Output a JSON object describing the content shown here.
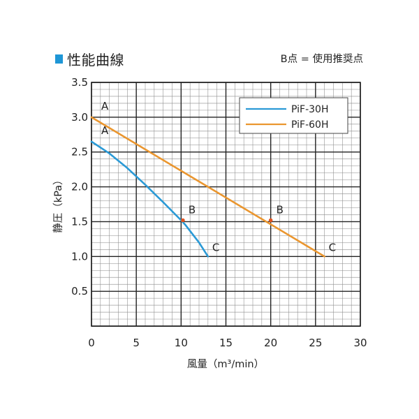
{
  "header": {
    "title": "性能曲線",
    "note": "B点 = 使用推奨点"
  },
  "colors": {
    "accent": "#1e96d6",
    "series_30h": "#2b9ad6",
    "series_60h": "#ea962f"
  },
  "chart_data": {
    "type": "line",
    "xlabel": "風量（m³/min）",
    "ylabel": "静圧（kPa）",
    "xlim": [
      0,
      30
    ],
    "ylim": [
      0,
      3.5
    ],
    "xticks": [
      "0",
      "5",
      "10",
      "15",
      "20",
      "25",
      "30"
    ],
    "yticks": [
      "0.5",
      "1.0",
      "1.5",
      "2.0",
      "2.5",
      "3.0",
      "3.5"
    ],
    "grid": true,
    "legend_position": "top-right",
    "series": [
      {
        "name": "PiF-30H",
        "x": [
          0,
          2,
          4,
          6,
          8,
          10,
          10.5,
          12,
          13
        ],
        "y": [
          2.65,
          2.48,
          2.27,
          2.03,
          1.78,
          1.52,
          1.45,
          1.2,
          1.0
        ],
        "points": [
          {
            "label": "A",
            "x": 0,
            "y": 2.65
          },
          {
            "label": "B",
            "x": 10.2,
            "y": 1.52
          },
          {
            "label": "C",
            "x": 13,
            "y": 1.0
          }
        ]
      },
      {
        "name": "PiF-60H",
        "x": [
          0,
          26
        ],
        "y": [
          3.0,
          1.0
        ],
        "points": [
          {
            "label": "A",
            "x": 0,
            "y": 3.0
          },
          {
            "label": "B",
            "x": 20,
            "y": 1.52
          },
          {
            "label": "C",
            "x": 26,
            "y": 1.0
          }
        ]
      }
    ]
  }
}
